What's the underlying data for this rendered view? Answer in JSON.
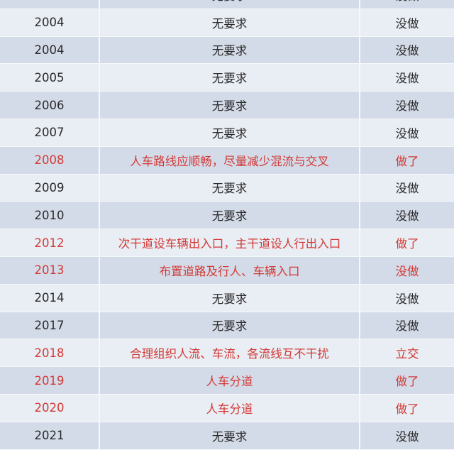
{
  "colors": {
    "highlight": "#d23a36",
    "text": "#2a2a2a",
    "row_dark": "#d4dbe8",
    "row_light": "#e9edf4"
  },
  "rows": [
    {
      "year": "",
      "requirement": "无要求",
      "status": "没做",
      "highlight": false
    },
    {
      "year": "2004",
      "requirement": "无要求",
      "status": "没做",
      "highlight": false
    },
    {
      "year": "2004",
      "requirement": "无要求",
      "status": "没做",
      "highlight": false
    },
    {
      "year": "2005",
      "requirement": "无要求",
      "status": "没做",
      "highlight": false
    },
    {
      "year": "2006",
      "requirement": "无要求",
      "status": "没做",
      "highlight": false
    },
    {
      "year": "2007",
      "requirement": "无要求",
      "status": "没做",
      "highlight": false
    },
    {
      "year": "2008",
      "requirement": "人车路线应顺畅，尽量减少混流与交叉",
      "status": "做了",
      "highlight": true
    },
    {
      "year": "2009",
      "requirement": "无要求",
      "status": "没做",
      "highlight": false
    },
    {
      "year": "2010",
      "requirement": "无要求",
      "status": "没做",
      "highlight": false
    },
    {
      "year": "2012",
      "requirement": "次干道设车辆出入口，主干道设人行出入口",
      "status": "做了",
      "highlight": true
    },
    {
      "year": "2013",
      "requirement": "布置道路及行人、车辆入口",
      "status": "没做",
      "highlight": true
    },
    {
      "year": "2014",
      "requirement": "无要求",
      "status": "没做",
      "highlight": false
    },
    {
      "year": "2017",
      "requirement": "无要求",
      "status": "没做",
      "highlight": false
    },
    {
      "year": "2018",
      "requirement": "合理组织人流、车流，各流线互不干扰",
      "status": "立交",
      "highlight": true
    },
    {
      "year": "2019",
      "requirement": "人车分道",
      "status": "做了",
      "highlight": true
    },
    {
      "year": "2020",
      "requirement": "人车分道",
      "status": "做了",
      "highlight": true
    },
    {
      "year": "2021",
      "requirement": "无要求",
      "status": "没做",
      "highlight": false
    }
  ]
}
